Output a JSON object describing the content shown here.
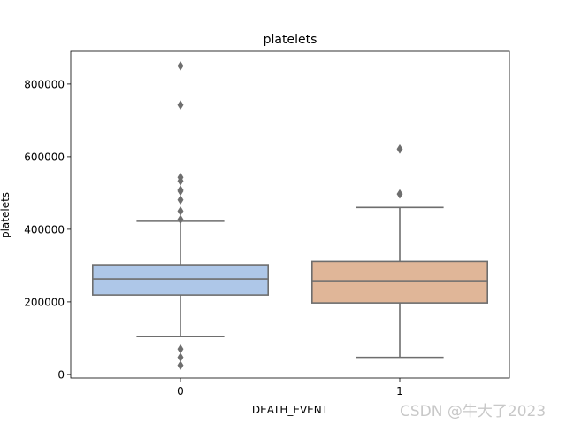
{
  "chart_data": {
    "type": "box",
    "title": "platelets",
    "xlabel": "DEATH_EVENT",
    "ylabel": "platelets",
    "categories": [
      "0",
      "1"
    ],
    "ylim": [
      -10000,
      890000
    ],
    "yticks": [
      0,
      200000,
      400000,
      600000,
      800000
    ],
    "ytick_labels": [
      "0",
      "200000",
      "400000",
      "600000",
      "800000"
    ],
    "grid": false,
    "boxes": [
      {
        "category": "0",
        "color": "#aec7e8",
        "whisker_low": 104000,
        "q1": 219000,
        "median": 263000,
        "q3": 302000,
        "whisker_high": 422000,
        "outliers": [
          25000,
          47000,
          70000,
          427000,
          450000,
          481000,
          505000,
          508000,
          533000,
          543000,
          742000,
          850000
        ]
      },
      {
        "category": "1",
        "color": "#e0b698",
        "whisker_low": 47000,
        "q1": 197000,
        "median": 258000,
        "q3": 311000,
        "whisker_high": 460000,
        "outliers": [
          497000,
          621000
        ]
      }
    ],
    "colors": {
      "box_edge": "#6e6e6e",
      "outlier": "#6e6e6e"
    }
  },
  "watermark": "CSDN @牛大了2023"
}
